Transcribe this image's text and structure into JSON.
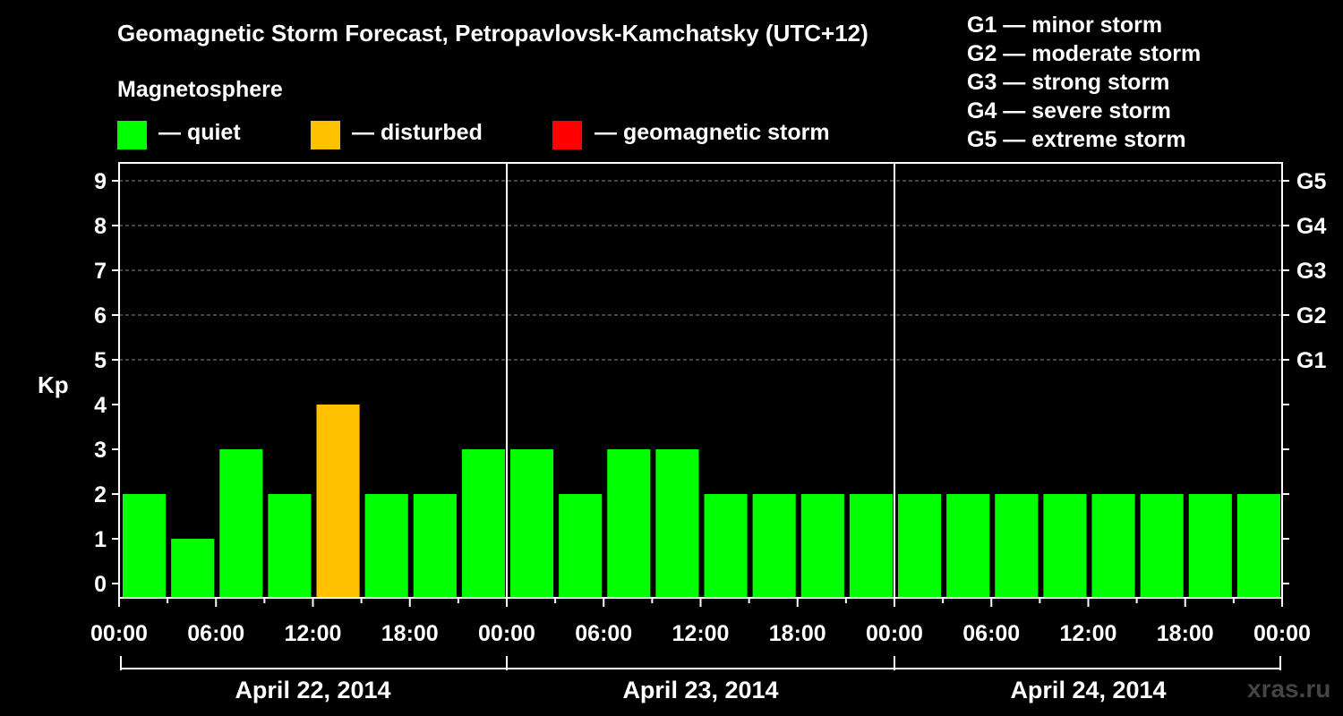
{
  "chart_data": {
    "type": "bar",
    "title": "Geomagnetic Storm Forecast, Petropavlovsk-Kamchatsky (UTC+12)",
    "ylabel": "Kp",
    "ylim": [
      0,
      9
    ],
    "y_ticks": [
      "0",
      "1",
      "2",
      "3",
      "4",
      "5",
      "6",
      "7",
      "8",
      "9"
    ],
    "right_axis": [
      {
        "kp": 5,
        "label": "G1"
      },
      {
        "kp": 6,
        "label": "G2"
      },
      {
        "kp": 7,
        "label": "G3"
      },
      {
        "kp": 8,
        "label": "G4"
      },
      {
        "kp": 9,
        "label": "G5"
      }
    ],
    "x_tick_labels": [
      "00:00",
      "06:00",
      "12:00",
      "18:00",
      "00:00",
      "06:00",
      "12:00",
      "18:00",
      "00:00",
      "06:00",
      "12:00",
      "18:00",
      "00:00"
    ],
    "days": [
      "April 22, 2014",
      "April 23, 2014",
      "April 24, 2014"
    ],
    "bars_per_day": 8,
    "values": [
      2,
      1,
      3,
      2,
      4,
      2,
      2,
      3,
      3,
      2,
      3,
      3,
      2,
      2,
      2,
      2,
      2,
      2,
      2,
      2,
      2,
      2,
      2,
      2
    ],
    "status": [
      "quiet",
      "quiet",
      "quiet",
      "quiet",
      "disturbed",
      "quiet",
      "quiet",
      "quiet",
      "quiet",
      "quiet",
      "quiet",
      "quiet",
      "quiet",
      "quiet",
      "quiet",
      "quiet",
      "quiet",
      "quiet",
      "quiet",
      "quiet",
      "quiet",
      "quiet",
      "quiet",
      "quiet"
    ],
    "grid": true
  },
  "legend": {
    "title": "Magnetosphere",
    "items": [
      {
        "label": "— quiet",
        "color": "#00ff00"
      },
      {
        "label": "— disturbed",
        "color": "#ffc000"
      },
      {
        "label": "— geomagnetic storm",
        "color": "#ff0000"
      }
    ]
  },
  "storm_levels": [
    "G1 — minor storm",
    "G2 — moderate storm",
    "G3 — strong storm",
    "G4 — severe storm",
    "G5 — extreme storm"
  ],
  "colors": {
    "quiet": "#00ff00",
    "disturbed": "#ffc000",
    "storm": "#ff0000"
  },
  "watermark": "xras.ru"
}
